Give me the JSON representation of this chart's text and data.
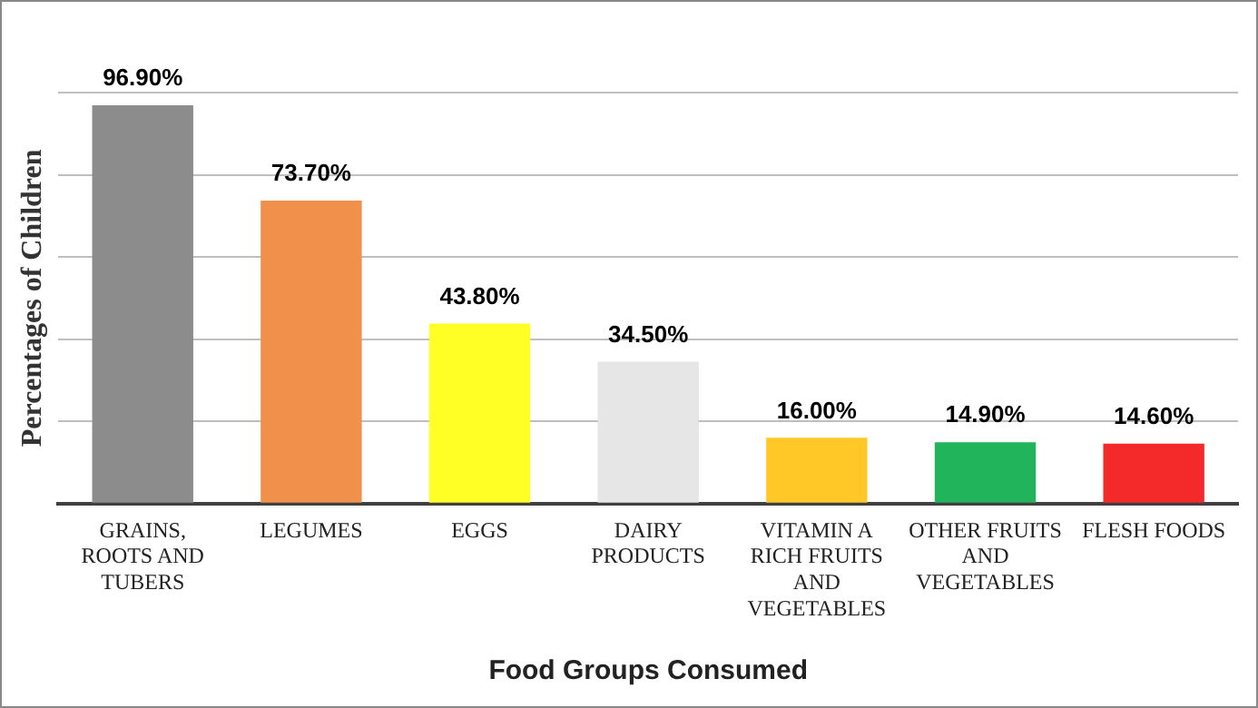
{
  "chart_data": {
    "type": "bar",
    "xlabel": "Food Groups Consumed",
    "ylabel": "Percentages of Children",
    "categories": [
      "GRAINS, ROOTS AND TUBERS",
      "LEGUMES",
      "EGGS",
      "DAIRY PRODUCTS",
      "VITAMIN A RICH FRUITS AND VEGETABLES",
      "OTHER FRUITS AND VEGETABLES",
      "FLESH FOODS"
    ],
    "values": [
      96.9,
      73.7,
      43.8,
      34.5,
      16.0,
      14.9,
      14.6
    ],
    "value_labels": [
      "96.90%",
      "73.70%",
      "43.80%",
      "34.50%",
      "16.00%",
      "14.90%",
      "14.60%"
    ],
    "colors": [
      "#8c8c8c",
      "#f0904a",
      "#ffff26",
      "#e6e6e6",
      "#ffc826",
      "#22b45a",
      "#f42a2a"
    ],
    "ylim": [
      0,
      100
    ],
    "yticks": [
      {
        "value": 0,
        "label": null
      },
      {
        "value": 20,
        "label": null
      },
      {
        "value": 40,
        "label": null
      },
      {
        "value": 60,
        "label": null
      },
      {
        "value": 80,
        "label": null
      },
      {
        "value": 100,
        "label": null
      }
    ],
    "grid": "y",
    "tick_labels": "x"
  }
}
